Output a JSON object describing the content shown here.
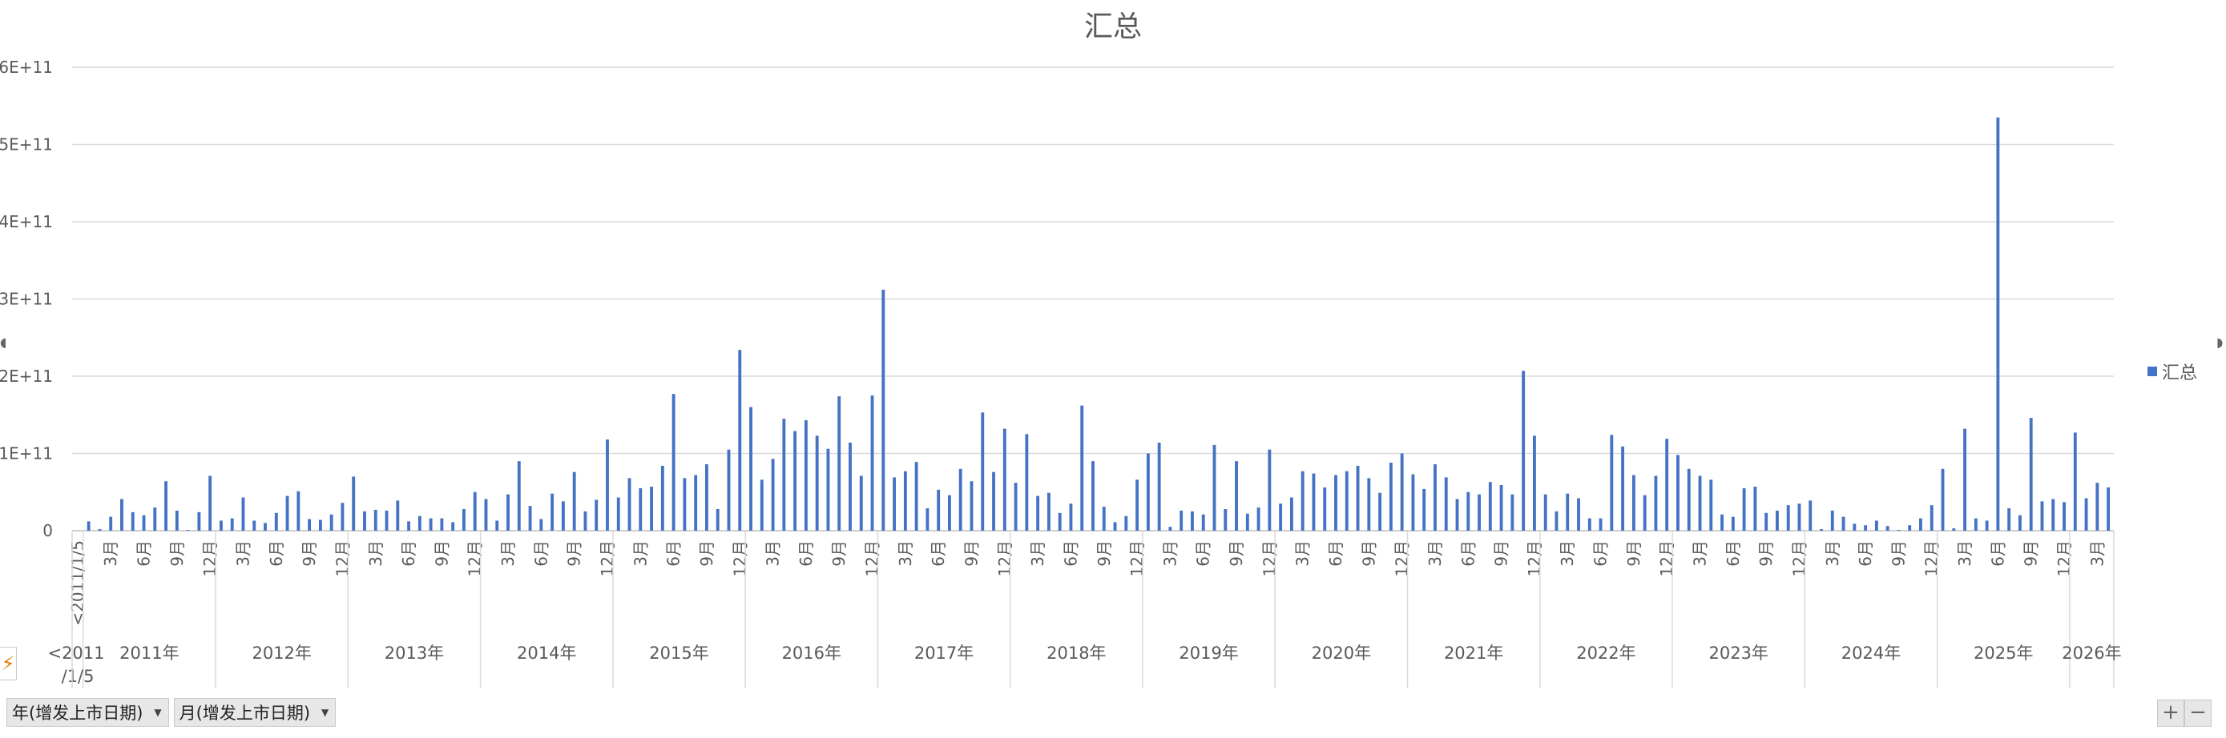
{
  "chart_data": {
    "type": "bar",
    "title": "汇总",
    "legend": {
      "entries": [
        "汇总"
      ],
      "position": "right"
    },
    "color": "#4472C4",
    "ylim": [
      0,
      600000000000
    ],
    "y_ticks": [
      "0",
      "1E+11",
      "2E+11",
      "3E+11",
      "4E+11",
      "5E+11",
      "6E+11"
    ],
    "y_tick_values": [
      0,
      100000000000,
      200000000000,
      300000000000,
      400000000000,
      500000000000,
      600000000000
    ],
    "grid": true,
    "groups": [
      {
        "label": "<2011/1/5",
        "month_labels": [
          "<2011/1/5"
        ],
        "values": []
      },
      {
        "label": "2011年",
        "month_labels": [
          "3月",
          "6月",
          "9月",
          "12月"
        ],
        "values": [
          12000000000.0,
          2000000000.0,
          18000000000.0,
          41000000000.0,
          24000000000.0,
          20000000000.0,
          30000000000.0,
          64000000000.0,
          26000000000.0,
          1000000000.0,
          24000000000.0,
          71000000000.0
        ]
      },
      {
        "label": "2012年",
        "month_labels": [
          "3月",
          "6月",
          "9月",
          "12月"
        ],
        "values": [
          13000000000.0,
          16000000000.0,
          43000000000.0,
          13000000000.0,
          10000000000.0,
          23000000000.0,
          45000000000.0,
          51000000000.0,
          15000000000.0,
          14000000000.0,
          21000000000.0,
          36000000000.0
        ]
      },
      {
        "label": "2013年",
        "month_labels": [
          "3月",
          "6月",
          "9月",
          "12月"
        ],
        "values": [
          70000000000.0,
          25000000000.0,
          27000000000.0,
          26000000000.0,
          39000000000.0,
          12000000000.0,
          19000000000.0,
          16000000000.0,
          16000000000.0,
          11000000000.0,
          28000000000.0,
          50000000000.0
        ]
      },
      {
        "label": "2014年",
        "month_labels": [
          "3月",
          "6月",
          "9月",
          "12月"
        ],
        "values": [
          41000000000.0,
          13000000000.0,
          47000000000.0,
          90000000000.0,
          32000000000.0,
          15000000000.0,
          48000000000.0,
          38000000000.0,
          76000000000.0,
          25000000000.0,
          40000000000.0,
          118000000000.0
        ]
      },
      {
        "label": "2015年",
        "month_labels": [
          "3月",
          "6月",
          "9月",
          "12月"
        ],
        "values": [
          43000000000.0,
          68000000000.0,
          55000000000.0,
          57000000000.0,
          84000000000.0,
          177000000000.0,
          68000000000.0,
          72000000000.0,
          86000000000.0,
          28000000000.0,
          105000000000.0,
          234000000000.0
        ]
      },
      {
        "label": "2016年",
        "month_labels": [
          "3月",
          "6月",
          "9月",
          "12月"
        ],
        "values": [
          160000000000.0,
          66000000000.0,
          93000000000.0,
          145000000000.0,
          129000000000.0,
          143000000000.0,
          123000000000.0,
          106000000000.0,
          174000000000.0,
          114000000000.0,
          71000000000.0,
          175000000000.0
        ]
      },
      {
        "label": "2017年",
        "month_labels": [
          "3月",
          "6月",
          "9月",
          "12月"
        ],
        "values": [
          312000000000.0,
          69000000000.0,
          77000000000.0,
          89000000000.0,
          29000000000.0,
          53000000000.0,
          46000000000.0,
          80000000000.0,
          64000000000.0,
          153000000000.0,
          76000000000.0,
          132000000000.0
        ]
      },
      {
        "label": "2018年",
        "month_labels": [
          "3月",
          "6月",
          "9月",
          "12月"
        ],
        "values": [
          62000000000.0,
          125000000000.0,
          45000000000.0,
          49000000000.0,
          23000000000.0,
          35000000000.0,
          162000000000.0,
          90000000000.0,
          31000000000.0,
          11000000000.0,
          19000000000.0,
          66000000000.0
        ]
      },
      {
        "label": "2019年",
        "month_labels": [
          "3月",
          "6月",
          "9月",
          "12月"
        ],
        "values": [
          100000000000.0,
          114000000000.0,
          5000000000.0,
          26000000000.0,
          25000000000.0,
          21000000000.0,
          111000000000.0,
          28000000000.0,
          90000000000.0,
          22000000000.0,
          30000000000.0,
          105000000000.0
        ]
      },
      {
        "label": "2020年",
        "month_labels": [
          "3月",
          "6月",
          "9月",
          "12月"
        ],
        "values": [
          35000000000.0,
          43000000000.0,
          77000000000.0,
          74000000000.0,
          56000000000.0,
          72000000000.0,
          77000000000.0,
          84000000000.0,
          68000000000.0,
          49000000000.0,
          88000000000.0,
          100000000000.0
        ]
      },
      {
        "label": "2021年",
        "month_labels": [
          "3月",
          "6月",
          "9月",
          "12月"
        ],
        "values": [
          73000000000.0,
          54000000000.0,
          86000000000.0,
          69000000000.0,
          41000000000.0,
          50000000000.0,
          47000000000.0,
          63000000000.0,
          59000000000.0,
          47000000000.0,
          207000000000.0,
          123000000000.0
        ]
      },
      {
        "label": "2022年",
        "month_labels": [
          "3月",
          "6月",
          "9月",
          "12月"
        ],
        "values": [
          47000000000.0,
          25000000000.0,
          48000000000.0,
          42000000000.0,
          16000000000.0,
          16000000000.0,
          124000000000.0,
          109000000000.0,
          72000000000.0,
          46000000000.0,
          71000000000.0,
          119000000000.0
        ]
      },
      {
        "label": "2023年",
        "month_labels": [
          "3月",
          "6月",
          "9月",
          "12月"
        ],
        "values": [
          98000000000.0,
          80000000000.0,
          71000000000.0,
          66000000000.0,
          21000000000.0,
          18000000000.0,
          55000000000.0,
          57000000000.0,
          23000000000.0,
          26000000000.0,
          33000000000.0,
          35000000000.0
        ]
      },
      {
        "label": "2024年",
        "month_labels": [
          "3月",
          "6月",
          "9月",
          "12月"
        ],
        "values": [
          39000000000.0,
          2000000000.0,
          26000000000.0,
          18000000000.0,
          9000000000.0,
          7000000000.0,
          13000000000.0,
          6000000000.0,
          1000000000.0,
          7000000000.0,
          16000000000.0,
          33000000000.0
        ]
      },
      {
        "label": "2025年",
        "month_labels": [
          "3月",
          "6月",
          "9月",
          "12月"
        ],
        "values": [
          80000000000.0,
          3000000000.0,
          132000000000.0,
          16000000000.0,
          13000000000.0,
          535000000000.0,
          29000000000.0,
          20000000000.0,
          146000000000.0,
          38000000000.0,
          41000000000.0,
          37000000000.0
        ]
      },
      {
        "label": "2026年",
        "month_labels": [
          "3月"
        ],
        "values": [
          127000000000.0,
          42000000000.0,
          62000000000.0,
          56000000000.0
        ]
      }
    ]
  },
  "controls": {
    "field_year": "年(增发上市日期)",
    "field_month": "月(增发上市日期)",
    "plus": "+",
    "minus": "−",
    "filter_icon": "⚡",
    "handle": "⊙"
  }
}
